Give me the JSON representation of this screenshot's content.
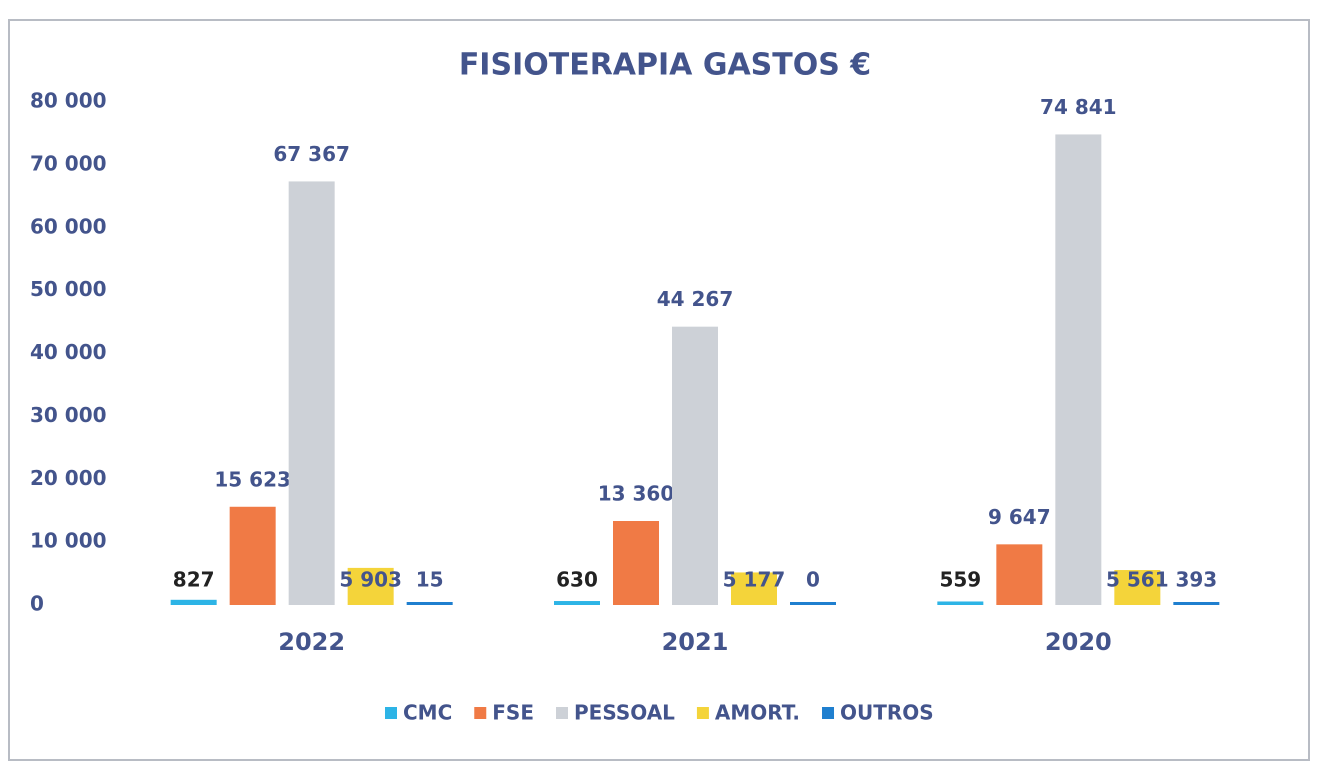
{
  "chart_data": {
    "type": "bar",
    "title": "FISIOTERAPIA GASTOS €",
    "categories": [
      "2022",
      "2021",
      "2020"
    ],
    "series": [
      {
        "name": "CMC",
        "color": "#2db4e6",
        "values": [
          827,
          630,
          559
        ]
      },
      {
        "name": "FSE",
        "color": "#f07a45",
        "values": [
          15623,
          13360,
          9647
        ],
        "value_labels": [
          "15 623",
          "13 360",
          "9 647"
        ]
      },
      {
        "name": "PESSOAL",
        "color": "#cdd1d7",
        "values": [
          67367,
          44267,
          74841
        ],
        "value_labels": [
          "67 367",
          "44 267",
          "74 841"
        ]
      },
      {
        "name": "AMORT.",
        "color": "#f4d43a",
        "values": [
          5903,
          5177,
          5561
        ],
        "value_labels": [
          "5 903",
          "5 177",
          "5 561"
        ]
      },
      {
        "name": "OUTROS",
        "color": "#1f7fcf",
        "values": [
          15,
          0,
          393
        ]
      }
    ],
    "ylim": [
      0,
      80000
    ],
    "yticks": [
      0,
      {
        "value": 10000,
        "label": "10 000"
      },
      {
        "value": 20000,
        "label": "20 000"
      },
      {
        "value": 30000,
        "label": "30 000"
      },
      {
        "value": 40000,
        "label": "40 000"
      },
      {
        "value": 50000,
        "label": "50 000"
      },
      {
        "value": 60000,
        "label": "60 000"
      },
      {
        "value": 70000,
        "label": "70 000"
      },
      {
        "value": 80000,
        "label": "80 000"
      }
    ],
    "grid": false,
    "legend": "bottom"
  }
}
